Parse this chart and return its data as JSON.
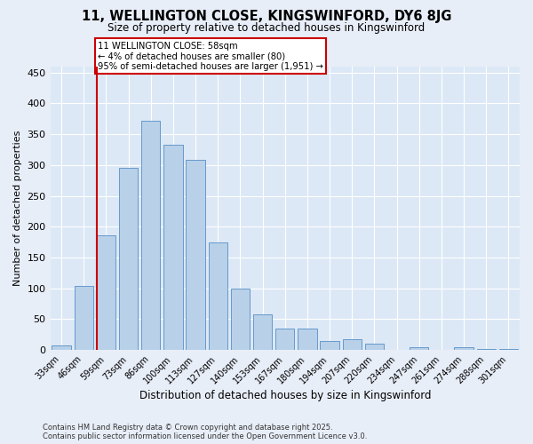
{
  "title_line1": "11, WELLINGTON CLOSE, KINGSWINFORD, DY6 8JG",
  "title_line2": "Size of property relative to detached houses in Kingswinford",
  "xlabel": "Distribution of detached houses by size in Kingswinford",
  "ylabel": "Number of detached properties",
  "categories": [
    "33sqm",
    "46sqm",
    "59sqm",
    "73sqm",
    "86sqm",
    "100sqm",
    "113sqm",
    "127sqm",
    "140sqm",
    "153sqm",
    "167sqm",
    "180sqm",
    "194sqm",
    "207sqm",
    "220sqm",
    "234sqm",
    "247sqm",
    "261sqm",
    "274sqm",
    "288sqm",
    "301sqm"
  ],
  "values": [
    8,
    104,
    186,
    295,
    372,
    333,
    308,
    175,
    100,
    58,
    35,
    35,
    14,
    17,
    10,
    0,
    5,
    0,
    4,
    2,
    2
  ],
  "bar_color": "#b8d0e8",
  "bar_edge_color": "#6699cc",
  "vline_color": "#cc0000",
  "annotation_line1": "11 WELLINGTON CLOSE: 58sqm",
  "annotation_line2": "← 4% of detached houses are smaller (80)",
  "annotation_line3": "95% of semi-detached houses are larger (1,951) →",
  "annotation_box_color": "#ffffff",
  "annotation_box_edge": "#cc0000",
  "ylim": [
    0,
    460
  ],
  "yticks": [
    0,
    50,
    100,
    150,
    200,
    250,
    300,
    350,
    400,
    450
  ],
  "fig_bg_color": "#e8eef8",
  "plot_bg_color": "#dce8f5",
  "grid_color": "#ffffff",
  "footer_line1": "Contains HM Land Registry data © Crown copyright and database right 2025.",
  "footer_line2": "Contains public sector information licensed under the Open Government Licence v3.0."
}
